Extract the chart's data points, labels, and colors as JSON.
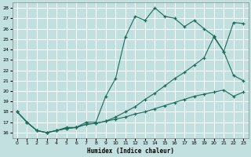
{
  "xlabel": "Humidex (Indice chaleur)",
  "bg_color": "#c2e0e0",
  "grid_color": "#ffffff",
  "line_color": "#1a6b5a",
  "xlim": [
    -0.5,
    23.5
  ],
  "ylim": [
    15.5,
    28.5
  ],
  "xticks": [
    0,
    1,
    2,
    3,
    4,
    5,
    6,
    7,
    8,
    9,
    10,
    11,
    12,
    13,
    14,
    15,
    16,
    17,
    18,
    19,
    20,
    21,
    22,
    23
  ],
  "yticks": [
    16,
    17,
    18,
    19,
    20,
    21,
    22,
    23,
    24,
    25,
    26,
    27,
    28
  ],
  "line1_x": [
    0,
    1,
    2,
    3,
    4,
    5,
    6,
    7,
    8,
    9,
    10,
    11,
    12,
    13,
    14,
    15,
    16,
    17,
    18,
    19,
    20,
    21,
    22,
    23
  ],
  "line1_y": [
    18,
    17,
    16.2,
    16,
    16.2,
    16.5,
    16.5,
    17,
    17,
    19.5,
    21.2,
    25.2,
    27.2,
    26.8,
    28.0,
    27.2,
    27.0,
    26.2,
    26.8,
    26.0,
    25.3,
    23.8,
    26.6,
    26.5
  ],
  "line2_x": [
    0,
    1,
    2,
    3,
    4,
    5,
    6,
    7,
    8,
    9,
    10,
    11,
    12,
    13,
    14,
    15,
    16,
    17,
    18,
    19,
    20,
    21,
    22,
    23
  ],
  "line2_y": [
    18,
    17,
    16.2,
    16.0,
    16.2,
    16.4,
    16.5,
    16.8,
    16.9,
    17.1,
    17.3,
    17.5,
    17.8,
    18.0,
    18.3,
    18.6,
    18.9,
    19.2,
    19.5,
    19.7,
    19.9,
    20.1,
    19.5,
    19.9
  ],
  "line3_x": [
    0,
    1,
    2,
    3,
    4,
    5,
    6,
    7,
    8,
    9,
    10,
    11,
    12,
    13,
    14,
    15,
    16,
    17,
    18,
    19,
    20,
    21,
    22,
    23
  ],
  "line3_y": [
    18,
    17,
    16.2,
    16.0,
    16.2,
    16.4,
    16.5,
    16.8,
    16.9,
    17.1,
    17.5,
    18.0,
    18.5,
    19.2,
    19.8,
    20.5,
    21.2,
    21.8,
    22.5,
    23.2,
    25.2,
    23.8,
    21.5,
    21.0
  ]
}
